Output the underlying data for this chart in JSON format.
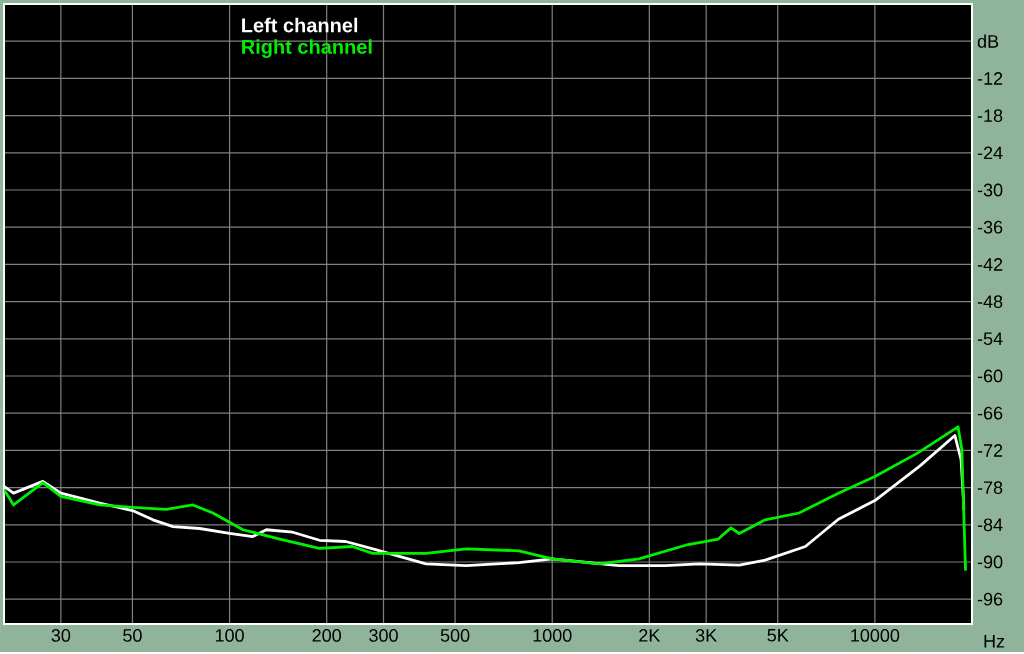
{
  "chart_data": {
    "type": "line",
    "xlabel": "Hz",
    "log": "x",
    "grid": true,
    "legend": "top left",
    "xlim": [
      20,
      20000
    ],
    "ylim": [
      -100,
      0
    ],
    "xticks": [
      30,
      50,
      100,
      200,
      300,
      500,
      1000,
      {
        "value": 2000,
        "label": "2K"
      },
      {
        "value": 3000,
        "label": "3K"
      },
      {
        "value": 5000,
        "label": "5K"
      },
      10000
    ],
    "yticks": [
      {
        "value": -6,
        "label": "dB"
      },
      -12,
      -18,
      -24,
      -30,
      -36,
      -42,
      -48,
      -54,
      -60,
      -66,
      -72,
      -78,
      -84,
      -90,
      -96
    ],
    "series": [
      {
        "name": "Left channel",
        "color": "#ffffff",
        "x": [
          20,
          21.4,
          26.4,
          30,
          39.6,
          50,
          57.9,
          66.8,
          80.8,
          100,
          118,
          130,
          157,
          190,
          229,
          278,
          406,
          541,
          789,
          1000,
          1611,
          2241,
          2850,
          3800,
          4570,
          6090,
          7710,
          10000,
          13800,
          17700,
          18500,
          18900
        ],
        "values": [
          -77.8,
          -78.9,
          -77,
          -78.9,
          -80.5,
          -81.7,
          -83.2,
          -84.3,
          -84.6,
          -85.4,
          -85.9,
          -84.8,
          -85.2,
          -86.5,
          -86.7,
          -87.9,
          -90.3,
          -90.6,
          -90.1,
          -89.5,
          -90.6,
          -90.6,
          -90.3,
          -90.5,
          -89.7,
          -87.5,
          -83.1,
          -80.1,
          -74.5,
          -69.6,
          -73.5,
          -81.6
        ]
      },
      {
        "name": "Right channel",
        "color": "#00f000",
        "x": [
          20,
          21.4,
          26.4,
          30,
          39.6,
          50,
          63.6,
          77,
          88.8,
          110,
          143,
          190,
          240,
          278,
          406,
          541,
          789,
          1000,
          1396,
          1857,
          2590,
          3270,
          3580,
          3800,
          4570,
          5820,
          7710,
          10000,
          13600,
          18100,
          18600,
          19100
        ],
        "values": [
          -78.3,
          -80.8,
          -77.2,
          -79.4,
          -80.8,
          -81.2,
          -81.5,
          -80.8,
          -82.1,
          -84.8,
          -86.3,
          -87.8,
          -87.5,
          -88.6,
          -88.6,
          -87.9,
          -88.2,
          -89.5,
          -90.3,
          -89.5,
          -87.3,
          -86.3,
          -84.5,
          -85.4,
          -83.2,
          -82.1,
          -78.9,
          -76.2,
          -72.4,
          -68.2,
          -71.8,
          -91.4
        ]
      }
    ]
  }
}
